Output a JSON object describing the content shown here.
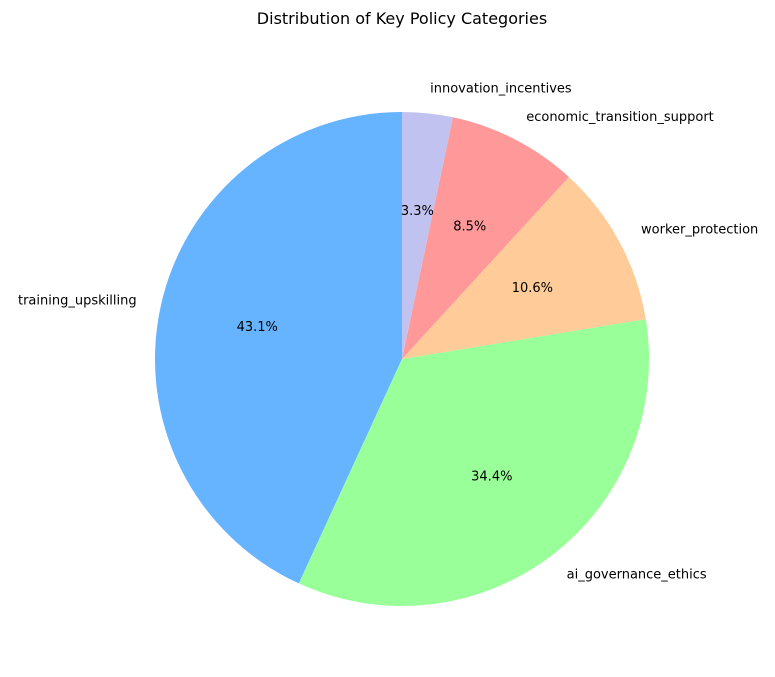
{
  "chart_data": {
    "type": "pie",
    "title": "Distribution of Key Policy Categories",
    "start_angle_deg": 90,
    "direction": "counterclockwise",
    "slices": [
      {
        "label": "training_upskilling",
        "value": 43.1,
        "pct_label": "43.1%",
        "color": "#66b3ff"
      },
      {
        "label": "ai_governance_ethics",
        "value": 34.4,
        "pct_label": "34.4%",
        "color": "#99ff99"
      },
      {
        "label": "worker_protection",
        "value": 10.6,
        "pct_label": "10.6%",
        "color": "#ffcc99"
      },
      {
        "label": "economic_transition_support",
        "value": 8.5,
        "pct_label": "8.5%",
        "color": "#ff9999"
      },
      {
        "label": "innovation_incentives",
        "value": 3.3,
        "pct_label": "3.3%",
        "color": "#c2c2f0"
      }
    ]
  }
}
